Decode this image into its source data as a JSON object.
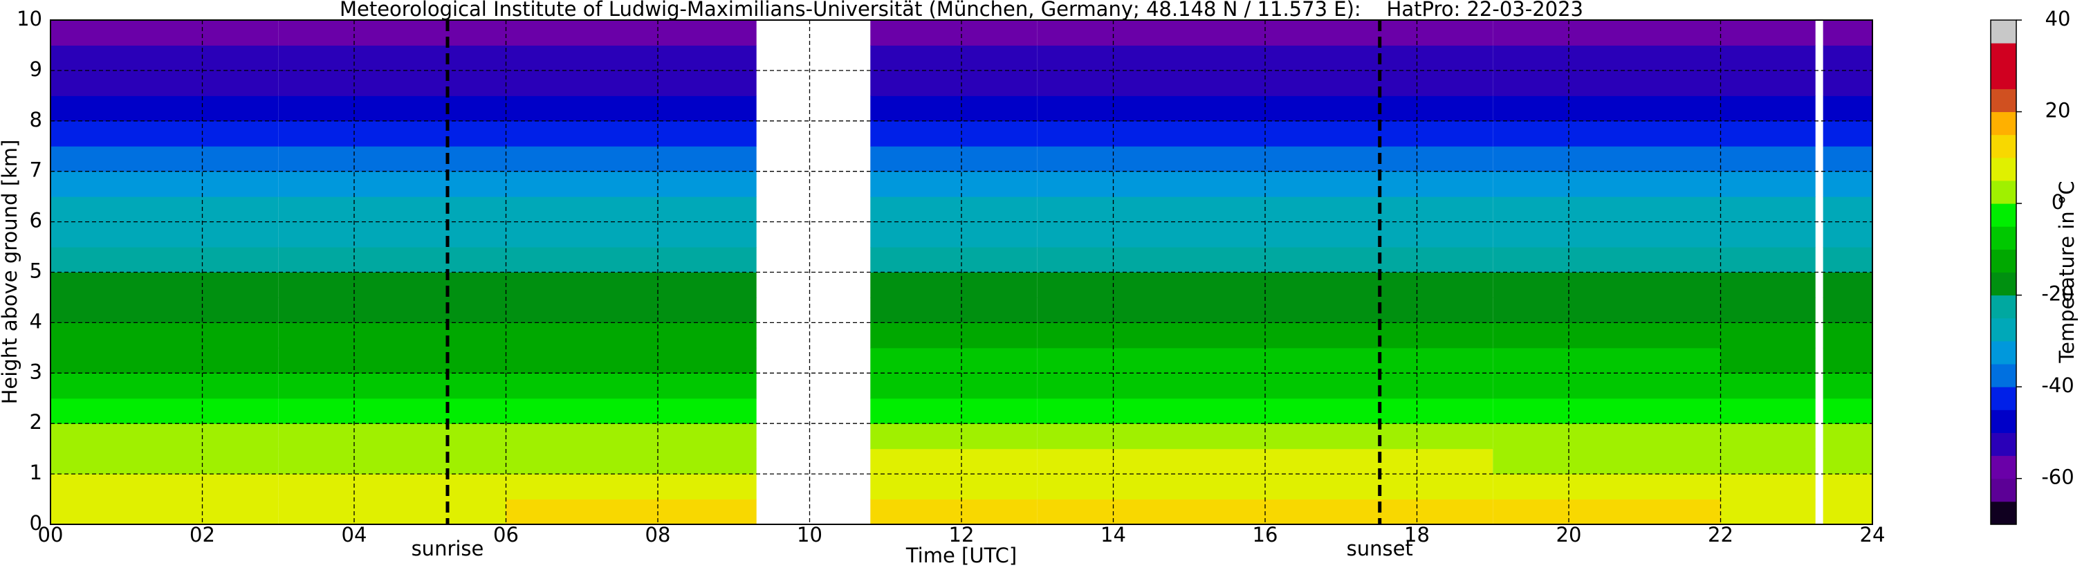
{
  "chart_data": {
    "type": "heatmap",
    "title": "Meteorological Institute of Ludwig-Maximilians-Universität (München, Germany; 48.148 N / 11.573 E):    HatPro: 22-03-2023",
    "xlabel": "Time [UTC]",
    "ylabel": "Height above ground [km]",
    "colorbar_label": "Temperature in °C",
    "xlim": [
      0,
      24
    ],
    "ylim": [
      0,
      10
    ],
    "xticks": [
      {
        "value": 0,
        "label": "00"
      },
      {
        "value": 2,
        "label": "02"
      },
      {
        "value": 4,
        "label": "04"
      },
      {
        "value": 6,
        "label": "06"
      },
      {
        "value": 8,
        "label": "08"
      },
      {
        "value": 10,
        "label": "10"
      },
      {
        "value": 12,
        "label": "12"
      },
      {
        "value": 14,
        "label": "14"
      },
      {
        "value": 16,
        "label": "16"
      },
      {
        "value": 18,
        "label": "18"
      },
      {
        "value": 20,
        "label": "20"
      },
      {
        "value": 22,
        "label": "22"
      },
      {
        "value": 24,
        "label": "24"
      }
    ],
    "yticks": [
      0,
      1,
      2,
      3,
      4,
      5,
      6,
      7,
      8,
      9,
      10
    ],
    "grid": true,
    "x_edges": [
      0,
      3,
      6,
      9.3,
      10.8,
      13,
      16,
      19,
      22,
      23.25,
      23.35,
      24
    ],
    "y_edges": [
      0,
      0.5,
      1,
      1.5,
      2,
      2.5,
      3,
      3.5,
      4,
      4.5,
      5,
      5.5,
      6,
      6.5,
      7,
      7.5,
      8,
      8.5,
      9,
      9.5,
      10
    ],
    "values": [
      [
        9,
        9,
        10,
        null,
        12,
        13,
        12,
        10,
        9,
        null,
        9
      ],
      [
        6,
        6,
        7,
        null,
        8,
        9,
        9,
        7,
        6,
        null,
        6
      ],
      [
        3,
        3,
        3,
        null,
        5,
        6,
        6,
        4,
        3,
        null,
        3
      ],
      [
        0,
        0,
        0,
        null,
        2,
        3,
        3,
        1,
        0,
        null,
        0
      ],
      [
        -3,
        -3,
        -3,
        null,
        -2,
        -1,
        -1,
        -2,
        -3,
        null,
        -3
      ],
      [
        -7,
        -7,
        -7,
        null,
        -6,
        -6,
        -6,
        -6,
        -7,
        null,
        -7
      ],
      [
        -11,
        -11,
        -11,
        null,
        -10,
        -10,
        -10,
        -10,
        -11,
        null,
        -11
      ],
      [
        -14,
        -14,
        -14,
        null,
        -14,
        -14,
        -14,
        -14,
        -14,
        null,
        -14
      ],
      [
        -17,
        -17,
        -17,
        null,
        -17,
        -17,
        -17,
        -17,
        -17,
        null,
        -17
      ],
      [
        -19,
        -19,
        -19,
        null,
        -19,
        -19,
        -19,
        -19,
        -19,
        null,
        -19
      ],
      [
        -22,
        -22,
        -22,
        null,
        -22,
        -22,
        -22,
        -22,
        -22,
        null,
        -22
      ],
      [
        -26,
        -26,
        -26,
        null,
        -26,
        -26,
        -26,
        -26,
        -26,
        null,
        -26
      ],
      [
        -29,
        -29,
        -29,
        null,
        -29,
        -29,
        -29,
        -29,
        -29,
        null,
        -29
      ],
      [
        -33,
        -33,
        -33,
        null,
        -33,
        -33,
        -33,
        -33,
        -33,
        null,
        -33
      ],
      [
        -37,
        -37,
        -37,
        null,
        -37,
        -37,
        -37,
        -37,
        -37,
        null,
        -37
      ],
      [
        -41,
        -41,
        -41,
        null,
        -41,
        -41,
        -41,
        -41,
        -41,
        null,
        -41
      ],
      [
        -46,
        -46,
        -46,
        null,
        -46,
        -46,
        -46,
        -46,
        -46,
        null,
        -46
      ],
      [
        -51,
        -51,
        -51,
        null,
        -51,
        -51,
        -51,
        -51,
        -51,
        null,
        -51
      ],
      [
        -54,
        -54,
        -54,
        null,
        -54,
        -54,
        -54,
        -54,
        -54,
        null,
        -54
      ],
      [
        -58,
        -58,
        -58,
        null,
        -58,
        -58,
        -58,
        -58,
        -58,
        null,
        -58
      ]
    ],
    "colorbar_lim": [
      -70,
      40
    ],
    "colorbar_ticks": [
      -60,
      -40,
      -20,
      0,
      20,
      40
    ],
    "levels": [
      -70,
      -65,
      -60,
      -55,
      -50,
      -45,
      -40,
      -35,
      -30,
      -25,
      -20,
      -15,
      -10,
      -5,
      0,
      5,
      10,
      15,
      20,
      25,
      30,
      35,
      40
    ],
    "colors": [
      "#100020",
      "#5c0096",
      "#6a00a8",
      "#2a00b8",
      "#0000c8",
      "#0020e8",
      "#0070e0",
      "#0098dc",
      "#00a8b8",
      "#00a8a0",
      "#009010",
      "#00a800",
      "#00c800",
      "#00ee00",
      "#a0f000",
      "#e0f000",
      "#f8d800",
      "#ffb000",
      "#d05020",
      "#d00020",
      "#d00020",
      "#c8c8c8"
    ],
    "annotations": [
      {
        "label": "sunrise",
        "x": 5.23
      },
      {
        "label": "sunset",
        "x": 17.51
      }
    ]
  }
}
